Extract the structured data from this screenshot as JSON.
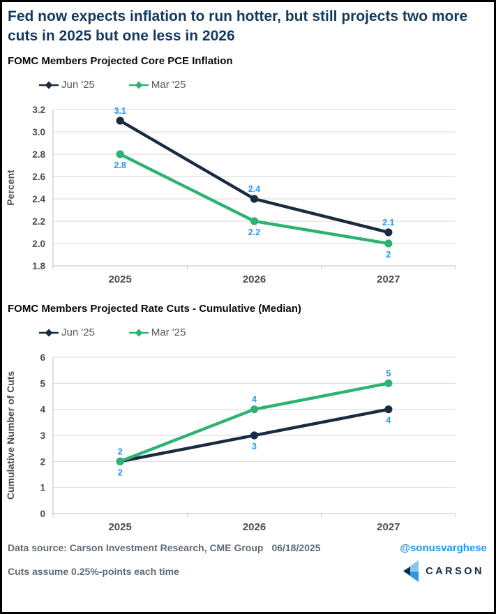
{
  "title": "Fed now expects inflation to run hotter, but still projects two more cuts in 2025 but one less in 2026",
  "colors": {
    "title_navy": "#14395E",
    "data_label_blue": "#2196F3",
    "axis_text": "#4d4d4d",
    "legend_text": "#595959",
    "gridline": "#D9D9D9",
    "axis_line": "#C0C0C0",
    "footer_text": "#5d6a75"
  },
  "chart_data": [
    {
      "type": "line",
      "title": "FOMC Members Projected Core PCE Inflation",
      "ylabel": "Percent",
      "xlabel": "",
      "categories": [
        "2025",
        "2026",
        "2027"
      ],
      "ylim": [
        1.8,
        3.2
      ],
      "yticks": [
        "3.2",
        "3.0",
        "2.8",
        "2.6",
        "2.4",
        "2.2",
        "2.0",
        "1.8"
      ],
      "grid": true,
      "legend_position": "top-left",
      "series": [
        {
          "name": "Jun '25",
          "color": "#182B40",
          "values": [
            3.1,
            2.4,
            2.1
          ],
          "point_labels": [
            "3.1",
            "2.4",
            "2.1"
          ],
          "label_side": "above"
        },
        {
          "name": "Mar '25",
          "color": "#2EB274",
          "values": [
            2.8,
            2.2,
            2.0
          ],
          "point_labels": [
            "2.8",
            "2.2",
            "2"
          ],
          "label_side": "below"
        }
      ]
    },
    {
      "type": "line",
      "title": "FOMC Members Projected Rate Cuts - Cumulative (Median)",
      "ylabel": "Cumulative Number of Cuts",
      "xlabel": "",
      "categories": [
        "2025",
        "2026",
        "2027"
      ],
      "ylim": [
        0,
        6
      ],
      "yticks": [
        "6",
        "5",
        "4",
        "3",
        "2",
        "1",
        "0"
      ],
      "grid": true,
      "legend_position": "top-left",
      "series": [
        {
          "name": "Jun '25",
          "color": "#182B40",
          "values": [
            2,
            3,
            4
          ],
          "point_labels": [
            "2",
            "3",
            "4"
          ],
          "label_side": "below"
        },
        {
          "name": "Mar '25",
          "color": "#2EB274",
          "values": [
            2,
            4,
            5
          ],
          "point_labels": [
            "2",
            "4",
            "5"
          ],
          "label_side": "above"
        }
      ]
    }
  ],
  "footer": {
    "source_label": "Data source: Carson Investment Research, CME Group",
    "date": "06/18/2025",
    "handle": "@sonusvarghese",
    "note": "Cuts assume 0.25%-points each time",
    "logo_text": "CARSON",
    "logo_colors": {
      "light_blue": "#8AC6EC",
      "mid_blue": "#2C99DF",
      "dark_navy": "#14293E",
      "text_navy": "#16293F"
    }
  }
}
